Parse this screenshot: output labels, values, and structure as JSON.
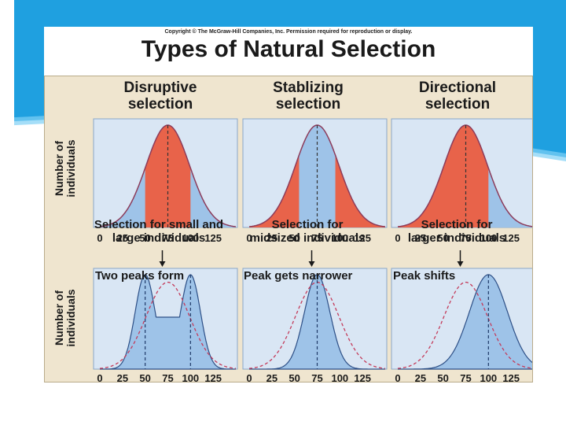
{
  "copyright": "Copyright © The McGraw-Hill Companies, Inc. Permission required for reproduction or display.",
  "title": "Types of Natural Selection",
  "y_axis_label": {
    "line1": "Number of",
    "line2": "individuals"
  },
  "tick_labels": [
    "0",
    "25",
    "50",
    "75",
    "100",
    "125"
  ],
  "colors": {
    "fill_blue": "#9ec3e8",
    "highlight_red": "#e8634a",
    "panel_bg": "#d9e6f4",
    "figure_bg": "#efe5cf",
    "curve_line": "#8c3b5a",
    "dashed_original": "#c43b5a"
  },
  "columns": [
    {
      "heading1": "Disruptive",
      "heading2": "selection",
      "note1": "Selection for small and",
      "note2": "large individuals",
      "result": "Two peaks form",
      "highlight_range": [
        50,
        100
      ],
      "result_peaks": [
        50,
        100
      ],
      "result_kind": "bimodal"
    },
    {
      "heading1": "Stablizing",
      "heading2": "selection",
      "note1": "Selection for",
      "note2": "midsized individuals",
      "result": "Peak gets narrower",
      "highlight_ranges": [
        [
          0,
          55
        ],
        [
          95,
          150
        ]
      ],
      "result_peaks": [
        75
      ],
      "result_kind": "narrow"
    },
    {
      "heading1": "Directional",
      "heading2": "selection",
      "note1": "Selection for",
      "note2": "larger individuals",
      "result": "Peak shifts",
      "highlight_range": [
        0,
        100
      ],
      "result_peaks": [
        100
      ],
      "result_kind": "shift"
    }
  ]
}
